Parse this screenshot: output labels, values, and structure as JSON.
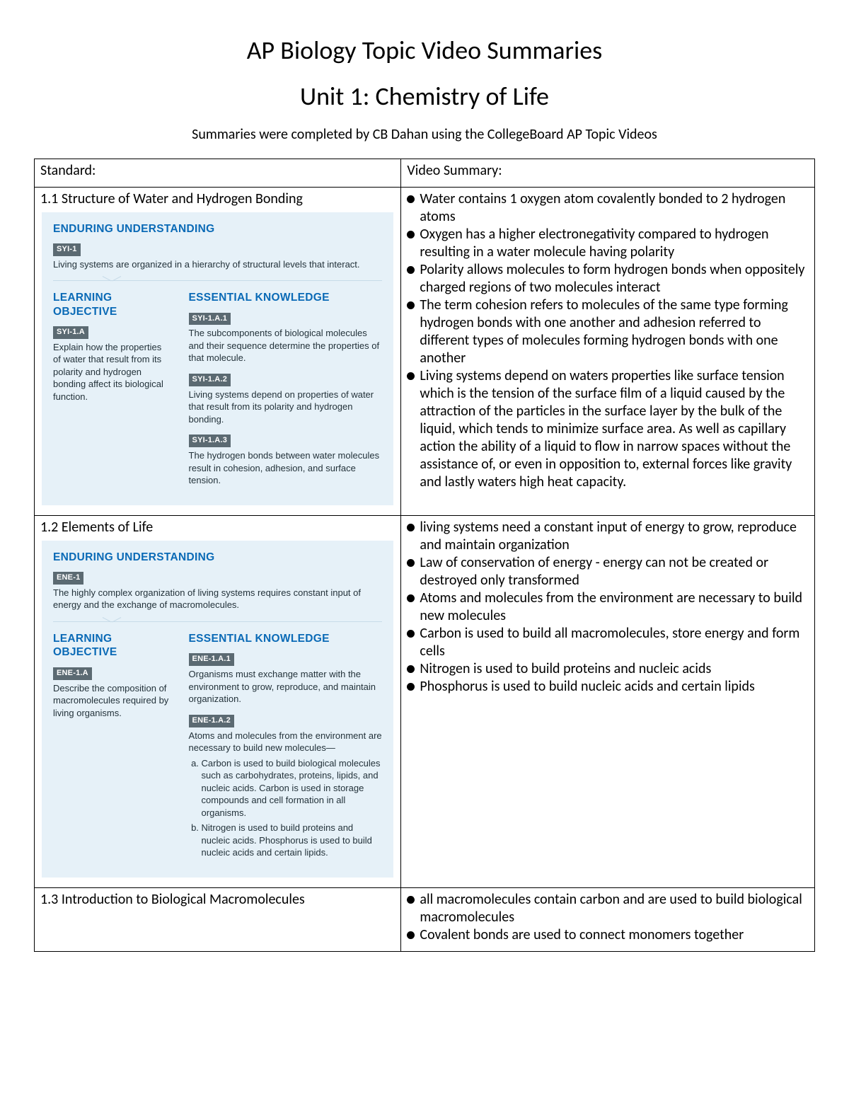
{
  "header": {
    "title": "AP Biology Topic Video Summaries",
    "unit": "Unit 1: Chemistry of Life",
    "byline": "Summaries were completed by CB Dahan using the CollegeBoard AP Topic Videos"
  },
  "table": {
    "col_left": "Standard:",
    "col_right": "Video Summary:"
  },
  "rows": [
    {
      "section": "1.1 Structure of Water and Hydrogen Bonding",
      "panel": {
        "eu_label": "ENDURING UNDERSTANDING",
        "eu_badge": "SYI-1",
        "eu_text": "Living systems are organized in a hierarchy of structural levels that interact.",
        "lo_label": "LEARNING OBJECTIVE",
        "lo_badge": "SYI-1.A",
        "lo_text": "Explain how the properties of water that result from its polarity and hydrogen bonding affect its biological function.",
        "ek_label": "ESSENTIAL KNOWLEDGE",
        "ek": [
          {
            "badge": "SYI-1.A.1",
            "text": "The subcomponents of biological molecules and their sequence determine the properties of that molecule."
          },
          {
            "badge": "SYI-1.A.2",
            "text": "Living systems depend on properties of water that result from its polarity and hydrogen bonding."
          },
          {
            "badge": "SYI-1.A.3",
            "text": "The hydrogen bonds between water molecules result in cohesion, adhesion, and surface tension."
          }
        ]
      },
      "summary": [
        "Water contains 1 oxygen atom covalently bonded to 2 hydrogen atoms",
        "Oxygen has a higher electronegativity compared to hydrogen resulting in a water molecule having polarity",
        "Polarity allows molecules to form hydrogen bonds when oppositely charged regions of two molecules interact",
        "The term cohesion refers to molecules of the same type forming hydrogen bonds with one another and adhesion referred to different types of molecules forming hydrogen bonds with one another",
        "Living systems depend on waters properties like surface tension which is the tension of the surface film of a liquid caused by the attraction of the particles in the surface layer by the bulk of the liquid, which tends to minimize surface area. As well as capillary action the ability of a liquid to flow in narrow spaces without the assistance of, or even in opposition to, external forces like gravity and lastly waters high heat capacity."
      ]
    },
    {
      "section": "1.2 Elements of Life",
      "panel": {
        "eu_label": "ENDURING UNDERSTANDING",
        "eu_badge": "ENE-1",
        "eu_text": "The highly complex organization of living systems requires constant input of energy and the exchange of macromolecules.",
        "lo_label": "LEARNING OBJECTIVE",
        "lo_badge": "ENE-1.A",
        "lo_text": "Describe the composition of macromolecules required by living organisms.",
        "ek_label": "ESSENTIAL KNOWLEDGE",
        "ek": [
          {
            "badge": "ENE-1.A.1",
            "text": "Organisms must exchange matter with the environment to grow, reproduce, and maintain organization."
          },
          {
            "badge": "ENE-1.A.2",
            "text": "Atoms and molecules from the environment are necessary to build new molecules—",
            "sub": [
              "Carbon is used to build biological molecules such as carbohydrates, proteins, lipids, and nucleic acids. Carbon is used in storage compounds and cell formation in all organisms.",
              "Nitrogen is used to build proteins and nucleic acids. Phosphorus is used to build nucleic acids and certain lipids."
            ]
          }
        ]
      },
      "summary": [
        "living systems need a constant input of energy to grow, reproduce and maintain organization",
        "Law of conservation of energy - energy can not be created or destroyed only transformed",
        "Atoms and molecules from the environment are necessary to build new molecules",
        "Carbon is used to build all macromolecules, store energy and form cells",
        "Nitrogen is used to build proteins and nucleic acids",
        "Phosphorus is used to build nucleic acids and certain lipids"
      ]
    },
    {
      "section": "1.3 Introduction to Biological Macromolecules",
      "panel": null,
      "summary": [
        "all macromolecules contain carbon and are used to build biological macromolecules",
        "Covalent bonds are used to connect monomers together"
      ]
    }
  ],
  "style": {
    "panel_bg": "#e6f1f8",
    "panel_heading_color": "#0a6ab6",
    "badge_bg": "#5b6a72",
    "badge_fg": "#ffffff",
    "border_color": "#000000"
  }
}
